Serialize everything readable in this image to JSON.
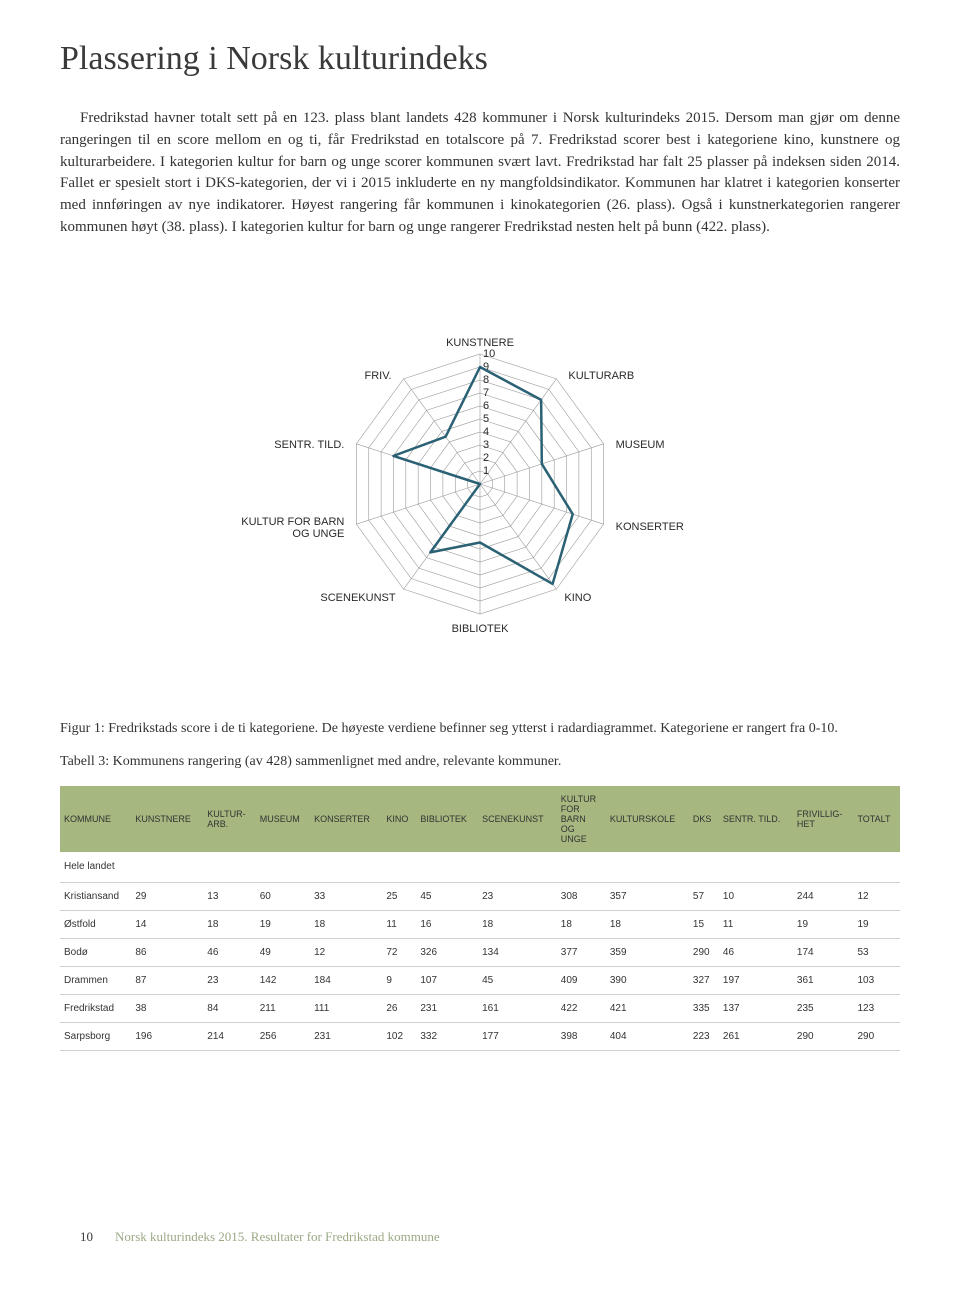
{
  "title": "Plassering i Norsk kulturindeks",
  "paragraph": "Fredrikstad havner totalt sett på en 123. plass blant landets 428 kommuner i Norsk kulturindeks 2015. Dersom man gjør om denne rangeringen til en score mellom en og ti, får Fredrikstad en totalscore på 7. Fredrikstad scorer best i kategoriene kino, kunstnere og kulturarbeidere. I kategorien kultur for barn og unge scorer kommunen svært lavt. Fredrikstad har falt 25 plasser på indeksen siden 2014. Fallet er spesielt stort i DKS-kategorien, der vi i 2015 inkluderte en ny mangfoldsindikator. Kommunen har klatret i kategorien konserter med innføringen av nye indikatorer. Høyest rangering får kommunen i kinokategorien (26. plass). Også i kunstnerkategorien rangerer kommunen høyt (38. plass). I kategorien kultur for barn og unge rangerer Fredrikstad nesten helt på bunn (422. plass).",
  "radar": {
    "type": "radar",
    "axes": [
      "KUNSTNERE",
      "KULTURARB",
      "MUSEUM",
      "KONSERTER",
      "KINO",
      "BIBLIOTEK",
      "SCENEKUNST",
      "KULTUR FOR BARN OG UNGE",
      "SENTR. TILD.",
      "FRIV."
    ],
    "axis_ticks": [
      0,
      1,
      2,
      3,
      4,
      5,
      6,
      7,
      8,
      9,
      10
    ],
    "values": [
      9,
      8,
      5,
      7.5,
      9.5,
      4.5,
      6.5,
      0,
      7,
      4.5
    ],
    "max": 10,
    "line_color": "#2b6174",
    "line_width": 2.5,
    "grid_color": "#9a9a9a",
    "grid_width": 0.6,
    "background_color": "#ffffff",
    "axis_label_fontsize": 11,
    "tick_label_fontsize": 10
  },
  "fig_caption": "Figur 1: Fredrikstads score i de ti kategoriene. De høyeste verdiene befinner seg ytterst i radardiagrammet. Kategoriene er rangert fra 0-10.",
  "tab_caption": "Tabell 3: Kommunens rangering (av 428) sammenlignet med andre, relevante kommuner.",
  "table": {
    "header_bg": "#a6b77f",
    "columns": [
      "KOMMUNE",
      "KUNSTNERE",
      "KULTUR-ARB.",
      "MUSEUM",
      "KONSERTER",
      "KINO",
      "BIBLIOTEK",
      "SCENEKUNST",
      "KULTUR FOR BARN OG UNGE",
      "KULTURSKOLE",
      "DKS",
      "SENTR. TILD.",
      "FRIVILLIG-HET",
      "TOTALT"
    ],
    "rows": [
      [
        "Hele landet",
        "",
        "",
        "",
        "",
        "",
        "",
        "",
        "",
        "",
        "",
        "",
        "",
        ""
      ],
      [
        "Kristiansand",
        "29",
        "13",
        "60",
        "33",
        "25",
        "45",
        "23",
        "308",
        "357",
        "57",
        "10",
        "244",
        "12"
      ],
      [
        "Østfold",
        "14",
        "18",
        "19",
        "18",
        "11",
        "16",
        "18",
        "18",
        "18",
        "15",
        "11",
        "19",
        "19"
      ],
      [
        "Bodø",
        "86",
        "46",
        "49",
        "12",
        "72",
        "326",
        "134",
        "377",
        "359",
        "290",
        "46",
        "174",
        "53"
      ],
      [
        "Drammen",
        "87",
        "23",
        "142",
        "184",
        "9",
        "107",
        "45",
        "409",
        "390",
        "327",
        "197",
        "361",
        "103"
      ],
      [
        "Fredrikstad",
        "38",
        "84",
        "211",
        "111",
        "26",
        "231",
        "161",
        "422",
        "421",
        "335",
        "137",
        "235",
        "123"
      ],
      [
        "Sarpsborg",
        "196",
        "214",
        "256",
        "231",
        "102",
        "332",
        "177",
        "398",
        "404",
        "223",
        "261",
        "290",
        "290"
      ]
    ]
  },
  "footer": {
    "page_num": "10",
    "text": "Norsk kulturindeks 2015. Resultater for Fredrikstad kommune"
  }
}
